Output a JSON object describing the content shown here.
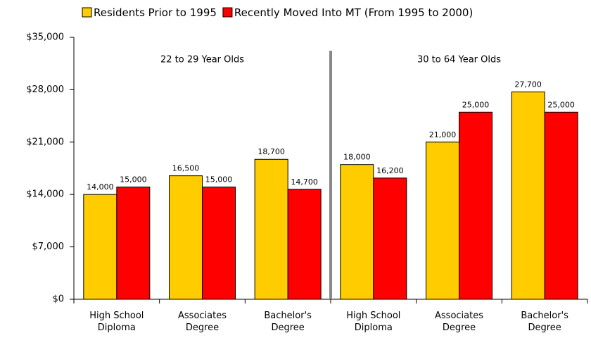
{
  "chart_data": {
    "type": "bar",
    "categories": [
      "High School Diploma",
      "Associates Degree",
      "Bachelor's Degree",
      "High School Diploma",
      "Associates Degree",
      "Bachelor's Degree"
    ],
    "group_labels": [
      "22 to 29 Year Olds",
      "30 to 64 Year Olds"
    ],
    "series": [
      {
        "name": "Residents Prior to 1995",
        "color": "#ffcc00",
        "values": [
          14000,
          16500,
          18700,
          18000,
          21000,
          27700
        ],
        "value_labels": [
          "14,000",
          "16,500",
          "18,700",
          "18,000",
          "21,000",
          "27,700"
        ]
      },
      {
        "name": "Recently Moved Into MT (From 1995 to 2000)",
        "color": "#ff0000",
        "values": [
          15000,
          15000,
          14700,
          16200,
          25000,
          25000
        ],
        "value_labels": [
          "15,000",
          "15,000",
          "14,700",
          "16,200",
          "25,000",
          "25,000"
        ]
      }
    ],
    "ylim": [
      0,
      35000
    ],
    "yticks": [
      {
        "value": 0,
        "label": "$0"
      },
      {
        "value": 7000,
        "label": "$7,000"
      },
      {
        "value": 14000,
        "label": "$14,000"
      },
      {
        "value": 21000,
        "label": "$21,000"
      },
      {
        "value": 28000,
        "label": "$28,000"
      },
      {
        "value": 35000,
        "label": "$35,000"
      }
    ],
    "legend": "top"
  }
}
